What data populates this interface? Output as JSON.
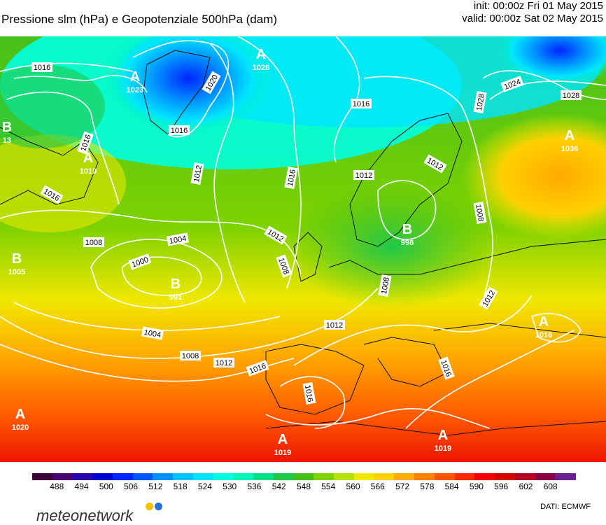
{
  "header": {
    "title": "Pressione slm (hPa) e Geopotenziale 500hPa (dam)",
    "init": "init: 00:00z Fri 01 May 2015",
    "valid": "valid: 00:00z Sat 02 May 2015"
  },
  "pressure_centers": [
    {
      "letter": "A",
      "value": "1028"
    },
    {
      "letter": "A",
      "value": "1023"
    },
    {
      "letter": "B",
      "value": "13"
    },
    {
      "letter": "A",
      "value": "1019"
    },
    {
      "letter": "B",
      "value": "1005"
    },
    {
      "letter": "B",
      "value": "991"
    },
    {
      "letter": "A",
      "value": "1036"
    },
    {
      "letter": "B",
      "value": "998"
    },
    {
      "letter": "A",
      "value": "1016"
    },
    {
      "letter": "A",
      "value": "1020"
    },
    {
      "letter": "A",
      "value": "1019"
    },
    {
      "letter": "A",
      "value": "1019"
    }
  ],
  "isobar_labels": [
    "1016",
    "1020",
    "1016",
    "1016",
    "1016",
    "1012",
    "1016",
    "1016",
    "1012",
    "1028",
    "1028",
    "1024",
    "1012",
    "1008",
    "1004",
    "1000",
    "1008",
    "1012",
    "1008",
    "1012",
    "1004",
    "1008",
    "1012",
    "1016",
    "1016",
    "1016",
    "1012",
    "1008",
    "1028"
  ],
  "scale": {
    "colors": [
      "#3b003b",
      "#4b0070",
      "#2a00a8",
      "#0000d0",
      "#0026ff",
      "#0057ff",
      "#0090ff",
      "#00c3ff",
      "#00e5ff",
      "#00ffe0",
      "#00f5b8",
      "#00e08a",
      "#20c84a",
      "#46c01a",
      "#7ed200",
      "#b6e000",
      "#f0e800",
      "#ffd000",
      "#ffaa00",
      "#ff8000",
      "#ff5500",
      "#ff2a00",
      "#f00000",
      "#d60000",
      "#b40020",
      "#8a0040",
      "#6a2090"
    ],
    "tick_labels": [
      "488",
      "494",
      "500",
      "506",
      "512",
      "518",
      "524",
      "530",
      "536",
      "542",
      "548",
      "554",
      "560",
      "566",
      "572",
      "578",
      "584",
      "590",
      "596",
      "602",
      "608"
    ]
  },
  "footer": {
    "brand": "meteonetwork",
    "source": "DATI:  ECMWF"
  }
}
